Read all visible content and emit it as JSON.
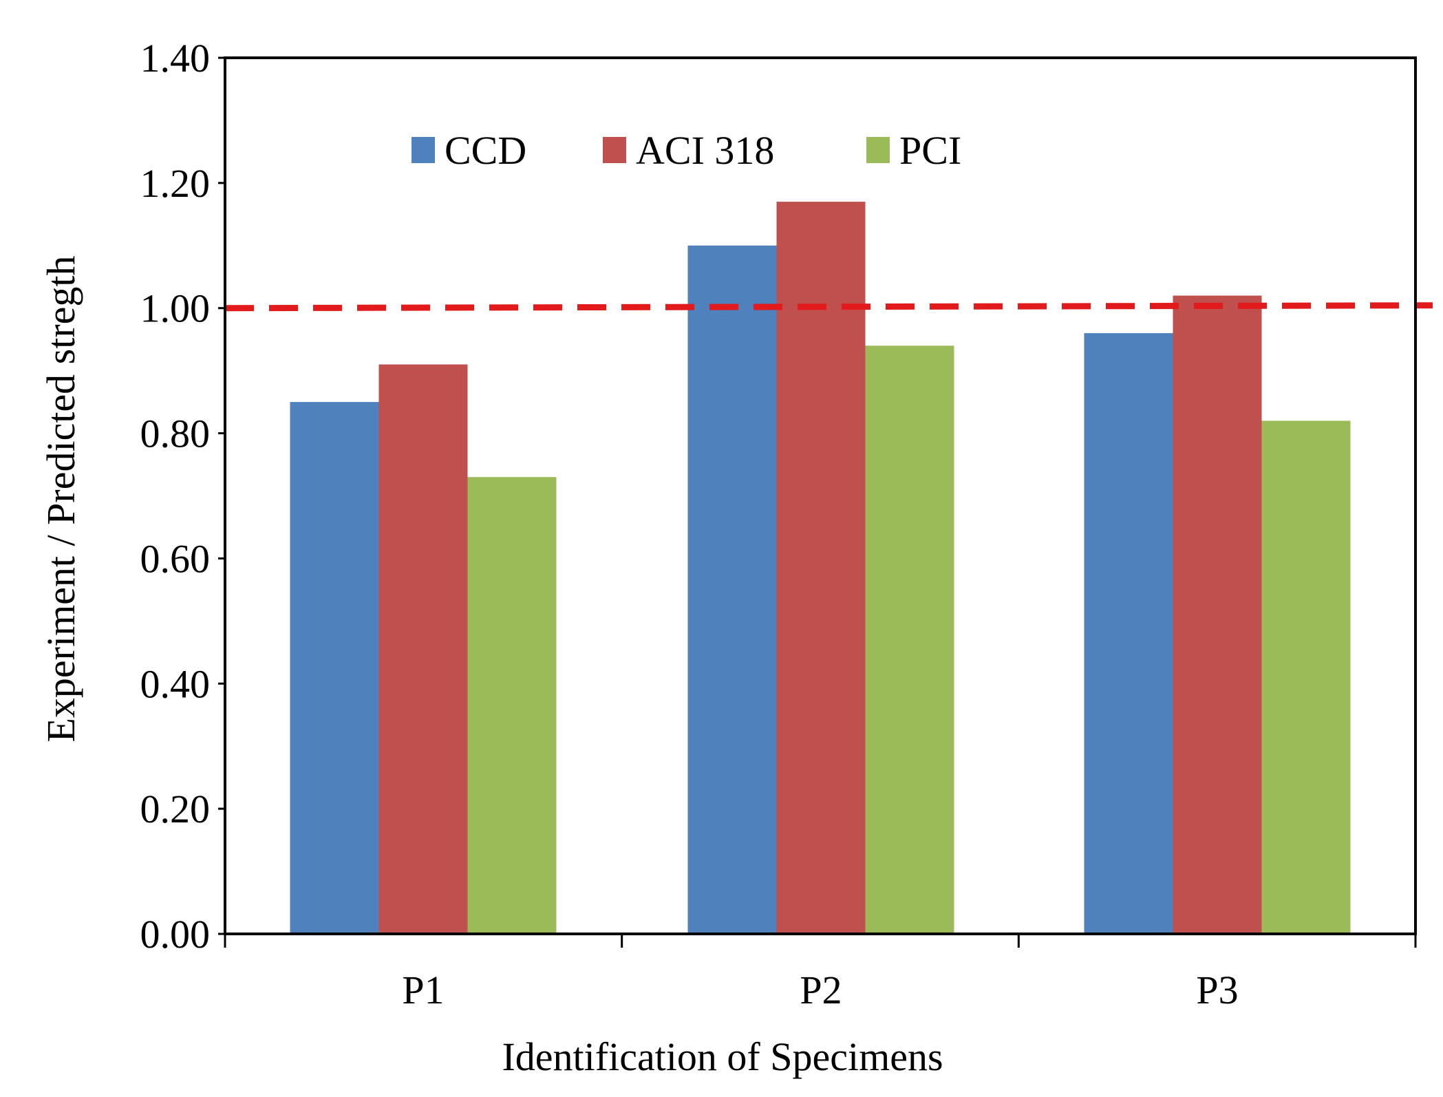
{
  "chart_data": {
    "type": "bar",
    "title": "",
    "xlabel": "Identification  of Specimens",
    "ylabel": "Experiment  / Predicted stregth",
    "categories": [
      "P1",
      "P2",
      "P3"
    ],
    "series": [
      {
        "name": "CCD",
        "color": "#4F81BD",
        "values": [
          0.85,
          1.1,
          0.96
        ]
      },
      {
        "name": "ACI 318",
        "color": "#C0504D",
        "values": [
          0.91,
          1.17,
          1.02
        ]
      },
      {
        "name": "PCI",
        "color": "#9BBB59",
        "values": [
          0.73,
          0.94,
          0.82
        ]
      }
    ],
    "ylim": [
      0.0,
      1.4
    ],
    "yticks": [
      0.0,
      0.2,
      0.4,
      0.6,
      0.8,
      1.0,
      1.2,
      1.4
    ],
    "ytick_labels": [
      "0.00",
      "0.20",
      "0.40",
      "0.60",
      "0.80",
      "1.00",
      "1.20",
      "1.40"
    ],
    "reference_line": {
      "y": 1.0,
      "style": "dashed",
      "color": "#E31A1C"
    },
    "legend_position": "top-left inside plot",
    "grid": false
  }
}
